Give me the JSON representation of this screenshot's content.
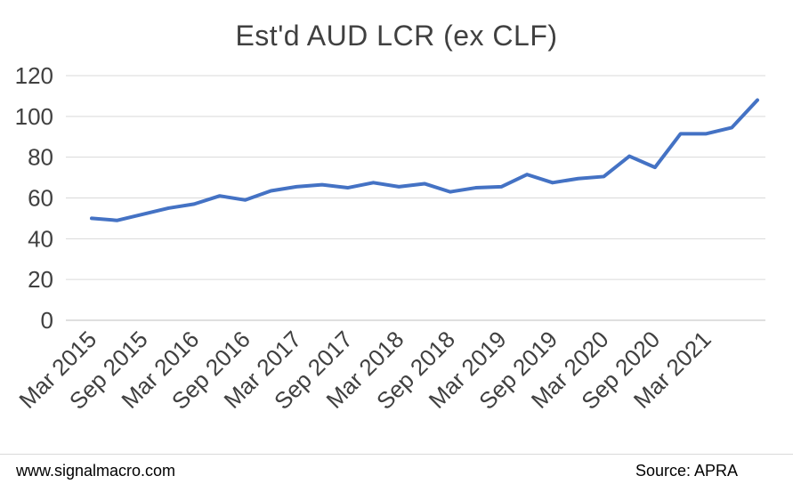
{
  "footer": {
    "website": "www.signalmacro.com",
    "source": "Source: APRA"
  },
  "chart_data": {
    "type": "line",
    "title": "Est'd AUD LCR (ex CLF)",
    "x_labels": [
      "Mar 2015",
      "Sep 2015",
      "Mar 2016",
      "Sep 2016",
      "Mar 2017",
      "Sep 2017",
      "Mar 2018",
      "Sep 2018",
      "Mar 2019",
      "Sep 2019",
      "Mar 2020",
      "Sep 2020",
      "Mar 2021"
    ],
    "label_every": 2,
    "x": [
      "Mar 2015",
      "Jun 2015",
      "Sep 2015",
      "Dec 2015",
      "Mar 2016",
      "Jun 2016",
      "Sep 2016",
      "Dec 2016",
      "Mar 2017",
      "Jun 2017",
      "Sep 2017",
      "Dec 2017",
      "Mar 2018",
      "Jun 2018",
      "Sep 2018",
      "Dec 2018",
      "Mar 2019",
      "Jun 2019",
      "Sep 2019",
      "Dec 2019",
      "Mar 2020",
      "Jun 2020",
      "Sep 2020",
      "Dec 2020",
      "Mar 2021",
      "Jun 2021",
      "Sep 2021"
    ],
    "values": [
      50,
      49,
      52,
      55,
      57,
      61,
      59,
      63.5,
      65.5,
      66.5,
      65,
      67.5,
      65.5,
      67,
      63,
      65,
      65.5,
      71.5,
      67.5,
      69.5,
      70.5,
      80.5,
      75,
      91.5,
      91.5,
      94.5,
      108
    ],
    "ylim": [
      0,
      120
    ],
    "ytick_step": 20,
    "grid": true,
    "legend": "none",
    "line_color": "#4472C4",
    "line_width": 4,
    "text_color": "#404040",
    "grid_color": "#d9d9d9",
    "axis_color": "#bfbfbf"
  }
}
